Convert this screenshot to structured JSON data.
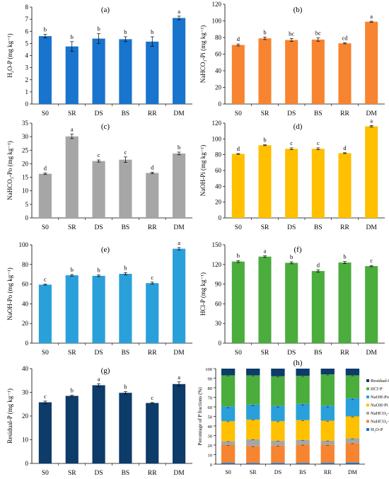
{
  "chart_data": [
    {
      "type": "bar",
      "panel_label": "(a)",
      "categories": [
        "S0",
        "SR",
        "DS",
        "BS",
        "RR",
        "DM"
      ],
      "values": [
        5.6,
        4.75,
        5.4,
        5.35,
        5.15,
        7.1
      ],
      "errors": [
        0.15,
        0.4,
        0.4,
        0.2,
        0.4,
        0.15
      ],
      "letters": [
        "b",
        "b",
        "b",
        "b",
        "b",
        "a"
      ],
      "ylabel": "H₂O-P (mg kg⁻¹)",
      "ylim": [
        0,
        8
      ],
      "yticks": [
        0,
        1,
        2,
        3,
        4,
        5,
        6,
        7,
        8
      ],
      "color": "#1874cd"
    },
    {
      "type": "bar",
      "panel_label": "(b)",
      "categories": [
        "S0",
        "SR",
        "DS",
        "BS",
        "RR",
        "DM"
      ],
      "values": [
        71,
        79,
        77,
        77.5,
        73,
        99
      ],
      "errors": [
        1.2,
        1.5,
        1.8,
        2.0,
        0.6,
        0.6
      ],
      "letters": [
        "d",
        "b",
        "bc",
        "bc",
        "cd",
        "a"
      ],
      "ylabel": "NaHCO₃-Pi (mg kg⁻¹)",
      "ylim": [
        0,
        120
      ],
      "yticks": [
        0,
        20,
        40,
        60,
        80,
        100,
        120
      ],
      "color": "#f78430"
    },
    {
      "type": "bar",
      "panel_label": "(c)",
      "categories": [
        "S0",
        "SR",
        "DS",
        "BS",
        "RR",
        "DM"
      ],
      "values": [
        16.3,
        30.1,
        21.0,
        21.5,
        16.6,
        23.8
      ],
      "errors": [
        0.3,
        0.8,
        0.4,
        1.0,
        0.3,
        0.5
      ],
      "letters": [
        "d",
        "a",
        "c",
        "c",
        "d",
        "b"
      ],
      "ylabel": "NaHCO₃-Po (mg kg⁻¹)",
      "ylim": [
        0,
        35
      ],
      "yticks": [
        0,
        5,
        10,
        15,
        20,
        25,
        30,
        35
      ],
      "color": "#a6a6a6"
    },
    {
      "type": "bar",
      "panel_label": "(d)",
      "categories": [
        "S0",
        "SR",
        "DS",
        "BS",
        "RR",
        "DM"
      ],
      "values": [
        81,
        92,
        87.5,
        87.5,
        82,
        116
      ],
      "errors": [
        0.5,
        0.5,
        1.2,
        1.2,
        0.5,
        1.0
      ],
      "letters": [
        "d",
        "b",
        "c",
        "c",
        "d",
        "a"
      ],
      "ylabel": "NaOH-Pi (mg kg⁻¹)",
      "ylim": [
        0,
        120
      ],
      "yticks": [
        0,
        20,
        40,
        60,
        80,
        100,
        120
      ],
      "color": "#ffc000"
    },
    {
      "type": "bar",
      "panel_label": "(e)",
      "categories": [
        "S0",
        "SR",
        "DS",
        "BS",
        "RR",
        "DM"
      ],
      "values": [
        59.5,
        69,
        68.5,
        70.5,
        61,
        96
      ],
      "errors": [
        0.5,
        0.8,
        0.8,
        1.2,
        1.0,
        1.2
      ],
      "letters": [
        "c",
        "b",
        "b",
        "b",
        "c",
        "a"
      ],
      "ylabel": "NaOH-Po (mg kg⁻¹)",
      "ylim": [
        0,
        100
      ],
      "yticks": [
        0,
        20,
        40,
        60,
        80,
        100
      ],
      "color": "#2aa0db"
    },
    {
      "type": "bar",
      "panel_label": "(f)",
      "categories": [
        "S0",
        "SR",
        "DS",
        "BS",
        "RR",
        "DM"
      ],
      "values": [
        124.5,
        132,
        122.5,
        110,
        123,
        117.5
      ],
      "errors": [
        1.5,
        1.2,
        1.5,
        1.8,
        1.5,
        1.0
      ],
      "letters": [
        "b",
        "a",
        "b",
        "d",
        "b",
        "c"
      ],
      "ylabel": "HCl-P (mg kg⁻¹)",
      "ylim": [
        0,
        150
      ],
      "yticks": [
        0,
        30,
        60,
        90,
        120,
        150
      ],
      "color": "#4aad3c"
    },
    {
      "type": "bar",
      "panel_label": "(g)",
      "categories": [
        "S0",
        "SR",
        "DS",
        "BS",
        "RR",
        "DM"
      ],
      "values": [
        25.8,
        28.5,
        33.0,
        29.8,
        25.5,
        33.5
      ],
      "errors": [
        0.5,
        0.3,
        0.6,
        0.5,
        0.2,
        0.9
      ],
      "letters": [
        "c",
        "b",
        "a",
        "b",
        "c",
        "a"
      ],
      "ylabel": "Residual-P (mg kg⁻¹)",
      "ylim": [
        0,
        40
      ],
      "yticks": [
        0,
        10,
        20,
        30,
        40
      ],
      "color": "#0d3b6a"
    },
    {
      "type": "stacked_bar",
      "panel_label": "(h)",
      "categories": [
        "S0",
        "SR",
        "DS",
        "BS",
        "RR",
        "DM"
      ],
      "ylabel": "Percentage of P fractions (%)",
      "ylim": [
        0,
        100
      ],
      "yticks": [
        0,
        10,
        20,
        30,
        40,
        50,
        60,
        70,
        80,
        90,
        100
      ],
      "series": [
        {
          "name": "H₂O-P",
          "color": "#1874cd",
          "values": [
            1.4,
            1.2,
            1.3,
            1.3,
            1.4,
            1.7
          ],
          "errors": [
            0,
            0,
            0,
            0,
            0,
            0
          ]
        },
        {
          "name": "NaHCO₃-Pi",
          "color": "#f78430",
          "values": [
            18.6,
            17.8,
            18.2,
            19.2,
            18.9,
            20.3
          ],
          "errors": [
            0.6,
            0.6,
            0.6,
            0.6,
            0.6,
            0.6
          ]
        },
        {
          "name": "NaHCO₃-Po",
          "color": "#a6a6a6",
          "values": [
            4.0,
            6.9,
            5.0,
            4.8,
            4.2,
            5.0
          ],
          "errors": [
            0.4,
            0.5,
            0.4,
            0.4,
            0.4,
            0.4
          ]
        },
        {
          "name": "NaOH-Pi",
          "color": "#ffc000",
          "values": [
            21.0,
            20.8,
            20.5,
            20.8,
            21.0,
            23.0
          ],
          "errors": [
            0.6,
            0.6,
            0.6,
            0.6,
            0.6,
            0.6
          ]
        },
        {
          "name": "NaOH-Po",
          "color": "#2aa0db",
          "values": [
            15.5,
            15.7,
            16.0,
            17.0,
            15.8,
            19.0
          ],
          "errors": [
            1.5,
            1.5,
            1.5,
            1.5,
            1.5,
            1.5
          ]
        },
        {
          "name": "HCl-P",
          "color": "#4aad3c",
          "values": [
            32.5,
            30.6,
            31.0,
            29.4,
            32.7,
            24.0
          ],
          "errors": [
            0.8,
            0.8,
            0.8,
            0.8,
            0.8,
            0.8
          ]
        },
        {
          "name": "Residual-P",
          "color": "#0d3b6a",
          "values": [
            7.0,
            7.0,
            8.0,
            7.5,
            6.0,
            7.0
          ],
          "errors": [
            0,
            0,
            0,
            0,
            0,
            0
          ]
        }
      ],
      "legend_position": "right"
    }
  ]
}
